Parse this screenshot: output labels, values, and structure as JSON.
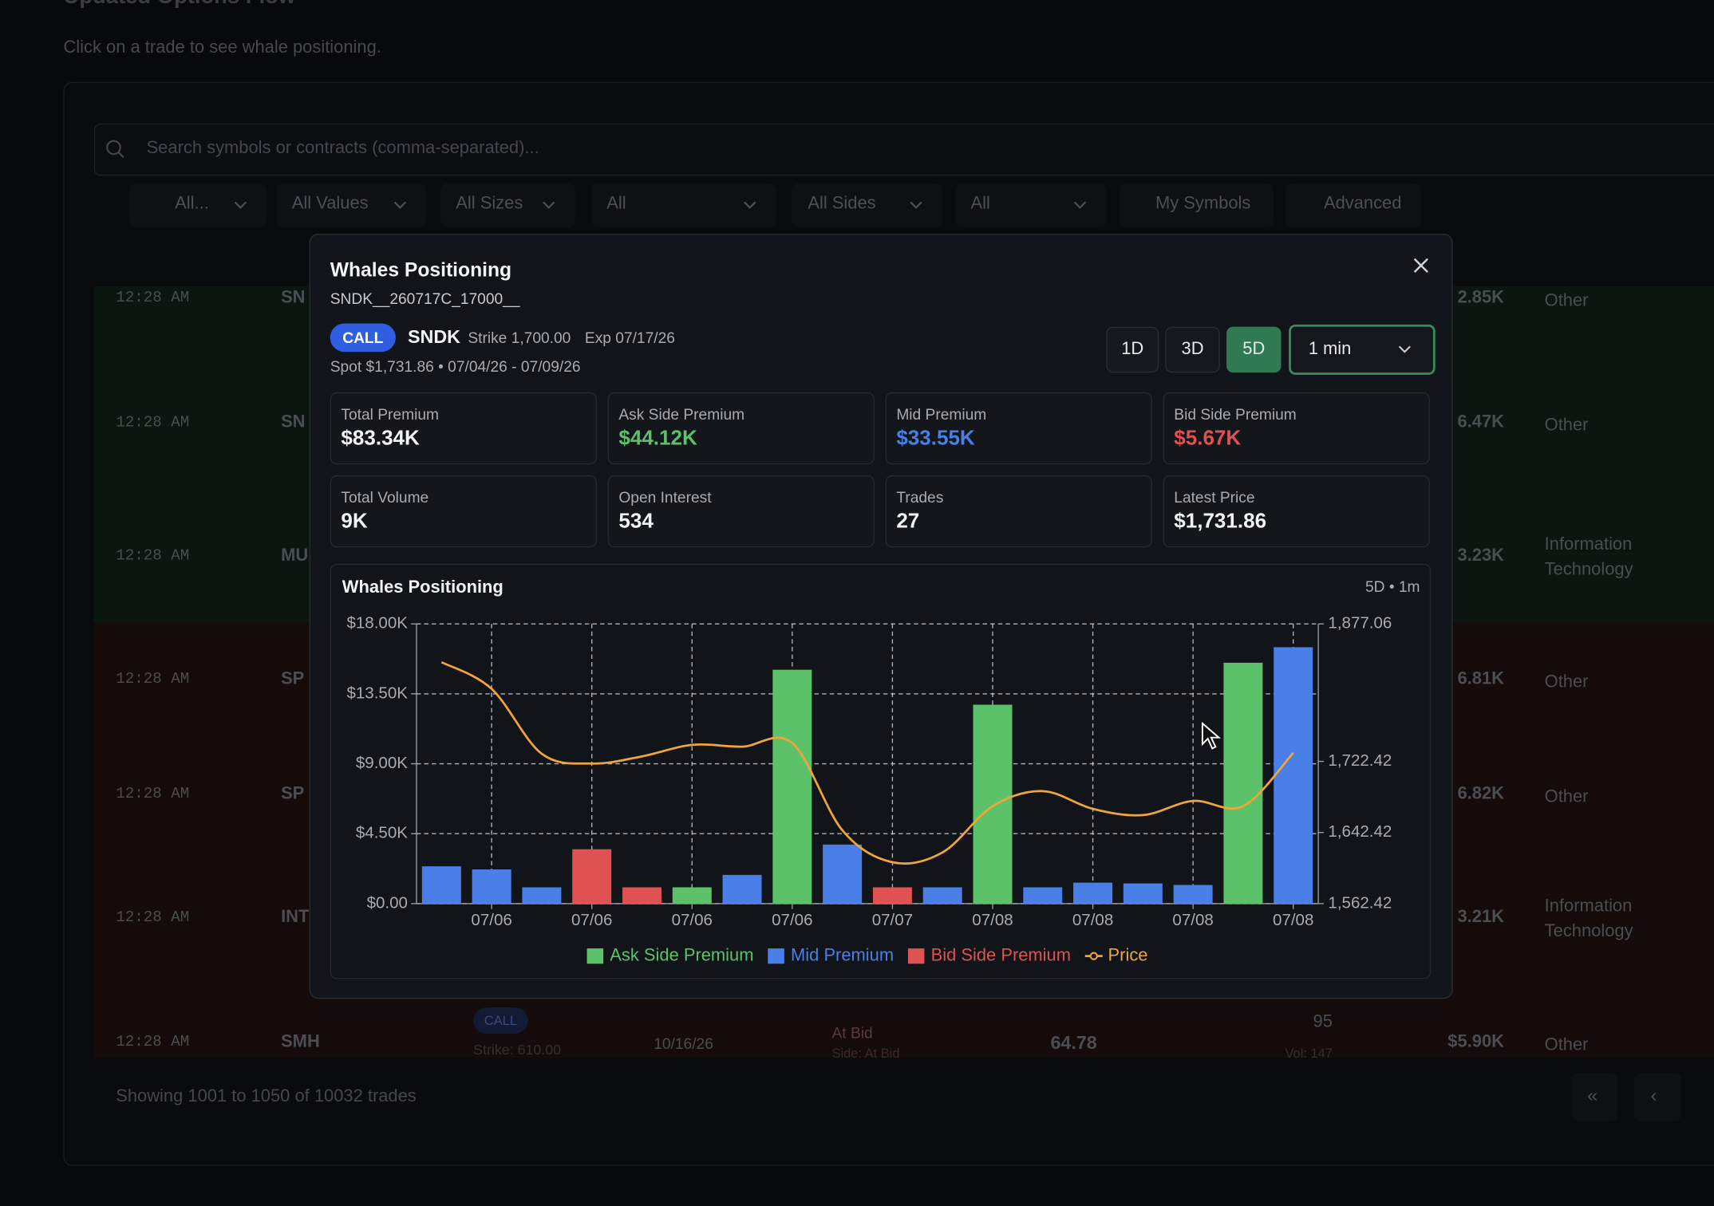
{
  "background": {
    "title": "Updated Options Flow",
    "subtitle": "Click on a trade to see whale positioning.",
    "search_placeholder": "Search symbols or contracts (comma-separated)...",
    "filters": [
      "All...",
      "All Values",
      "All Sizes",
      "All",
      "All Sides",
      "All"
    ],
    "buttons": [
      "My Symbols",
      "Advanced"
    ],
    "rows": [
      {
        "time": "12:28 AM",
        "symbol": "SN",
        "premium": "2.85K",
        "sector": "Other"
      },
      {
        "time": "12:28 AM",
        "symbol": "SN",
        "premium": "6.47K",
        "sector": "Other"
      },
      {
        "time": "12:28 AM",
        "symbol": "MU",
        "premium": "3.23K",
        "sector": "Information Technology"
      },
      {
        "time": "12:28 AM",
        "symbol": "SP",
        "premium": "6.81K",
        "sector": "Other"
      },
      {
        "time": "12:28 AM",
        "symbol": "SP",
        "premium": "6.82K",
        "sector": "Other"
      },
      {
        "time": "12:28 AM",
        "symbol": "INT",
        "premium": "3.21K",
        "sector": "Information Technology"
      },
      {
        "time": "12:28 AM",
        "symbol": "SMH",
        "premium": "$5.90K",
        "sector": "Other"
      }
    ],
    "last_row": {
      "badge": "CALL",
      "strike": "Strike: 610.00",
      "expiry": "10/16/26",
      "side": "At Bid",
      "side_detail": "Side: At Bid",
      "price": "64.78",
      "size": "95",
      "volume": "Vol: 147"
    },
    "footer": "Showing 1001 to 1050 of 10032 trades",
    "pagination": [
      "«",
      "‹"
    ]
  },
  "modal": {
    "title": "Whales Positioning",
    "contract": "SNDK__260717C_17000__",
    "badge": "CALL",
    "symbol": "SNDK",
    "strike": "Strike 1,700.00",
    "expiry": "Exp 07/17/26",
    "spot": "Spot $1,731.86 • 07/04/26 - 07/09/26",
    "ranges": [
      "1D",
      "3D",
      "5D"
    ],
    "interval": "1 min",
    "stats": [
      {
        "label": "Total Premium",
        "value": "$83.34K"
      },
      {
        "label": "Ask Side Premium",
        "value": "$44.12K"
      },
      {
        "label": "Mid Premium",
        "value": "$33.55K"
      },
      {
        "label": "Bid Side Premium",
        "value": "$5.67K"
      },
      {
        "label": "Total Volume",
        "value": "9K"
      },
      {
        "label": "Open Interest",
        "value": "534"
      },
      {
        "label": "Trades",
        "value": "27"
      },
      {
        "label": "Latest Price",
        "value": "$1,731.86"
      }
    ]
  },
  "chart_data": {
    "type": "bar",
    "title": "Whales Positioning",
    "subtitle": "5D • 1m",
    "categories": [
      null,
      "07/06",
      null,
      "07/06",
      null,
      "07/06",
      null,
      "07/06",
      null,
      "07/07",
      null,
      "07/08",
      null,
      "07/08",
      null,
      "07/08",
      null,
      "07/08"
    ],
    "series": [
      {
        "name": "Ask Side Premium",
        "color": "#5cc26a",
        "values": [
          null,
          null,
          null,
          null,
          null,
          1050,
          null,
          15050,
          null,
          null,
          null,
          12800,
          null,
          null,
          null,
          null,
          15500,
          null
        ]
      },
      {
        "name": "Mid Premium",
        "color": "#4a7fe8",
        "values": [
          2400,
          2200,
          1050,
          null,
          null,
          null,
          1850,
          null,
          3800,
          null,
          1050,
          null,
          1050,
          1350,
          1300,
          1200,
          null,
          16500
        ]
      },
      {
        "name": "Bid Side Premium",
        "color": "#e05252",
        "values": [
          null,
          null,
          null,
          3500,
          1050,
          null,
          null,
          null,
          null,
          1050,
          null,
          null,
          null,
          null,
          null,
          null,
          null,
          null
        ]
      },
      {
        "name": "Price",
        "type": "line",
        "axis": "y2",
        "color": "#f0a53a",
        "values": [
          1834,
          1804,
          1731,
          1720,
          1728,
          1741,
          1739,
          1743,
          1645,
          1609,
          1620,
          1672,
          1689,
          1669,
          1662,
          1678,
          1672,
          1732
        ]
      }
    ],
    "ylim": [
      0,
      18000
    ],
    "yticks": [
      {
        "value": 0,
        "label": "$0.00"
      },
      {
        "value": 4500,
        "label": "$4.50K"
      },
      {
        "value": 9000,
        "label": "$9.00K"
      },
      {
        "value": 13500,
        "label": "$13.50K"
      },
      {
        "value": 18000,
        "label": "$18.00K"
      }
    ],
    "y2lim": [
      1562.42,
      1877.06
    ],
    "y2ticks": [
      {
        "value": 1562.42,
        "label": "1,562.42"
      },
      {
        "value": 1642.42,
        "label": "1,642.42"
      },
      {
        "value": 1722.42,
        "label": "1,722.42"
      },
      {
        "value": 1877.06,
        "label": "1,877.06"
      }
    ],
    "grid": true,
    "legend": "bottom"
  }
}
